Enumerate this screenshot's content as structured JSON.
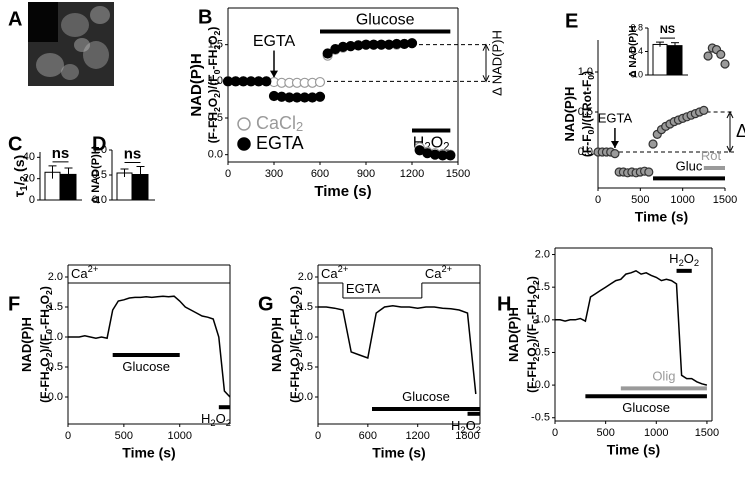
{
  "image": {
    "label": "A"
  },
  "chart_data": [
    {
      "label": "B",
      "type": "scatter",
      "xlabel": "Time (s)",
      "ylabel": [
        "NAD(P)H",
        "(F-FH2O2)/(F0-FH2O2)"
      ],
      "x": [
        0,
        50,
        100,
        150,
        200,
        250,
        300,
        350,
        400,
        450,
        500,
        550,
        600,
        650,
        700,
        750,
        800,
        850,
        900,
        950,
        1000,
        1050,
        1100,
        1150,
        1200,
        1250,
        1300,
        1350,
        1400,
        1450
      ],
      "series": [
        {
          "name": "CaCl2",
          "color": "#9a9a9a",
          "fill": "#ffffff",
          "values": [
            1.0,
            1.0,
            1.0,
            1.0,
            1.0,
            1.0,
            0.99,
            0.98,
            0.98,
            0.98,
            0.98,
            0.98,
            0.99,
            1.35,
            1.43,
            1.46,
            1.48,
            1.49,
            1.5,
            1.5,
            1.5,
            1.5,
            1.5,
            1.51,
            1.52,
            0.1,
            0.04,
            0.02,
            0.01,
            0.0
          ]
        },
        {
          "name": "EGTA",
          "color": "#000000",
          "fill": "#000000",
          "values": [
            1.0,
            1.0,
            1.0,
            1.0,
            1.0,
            1.0,
            0.8,
            0.79,
            0.78,
            0.78,
            0.78,
            0.78,
            0.79,
            1.38,
            1.44,
            1.47,
            1.48,
            1.49,
            1.5,
            1.5,
            1.5,
            1.5,
            1.51,
            1.51,
            1.52,
            0.06,
            0.02,
            0.0,
            -0.01,
            -0.01
          ]
        }
      ],
      "xlim": [
        0,
        1500
      ],
      "xticks": [
        0,
        300,
        600,
        900,
        1200,
        1500
      ],
      "ylim": [
        -0.1,
        2.0
      ],
      "yticks": [
        {
          "value": 0,
          "label": "0.0"
        },
        0.5,
        {
          "value": 1,
          "label": "1.0"
        },
        1.5
      ],
      "legend": "lower left",
      "arrow": {
        "text": "EGTA",
        "x": 300
      },
      "bracket": {
        "text": "Δ NAD(P)H",
        "range": [
          1.0,
          1.5
        ]
      },
      "bars": [
        {
          "label": "Glucose",
          "x": [
            600,
            1450
          ],
          "y": 1.68,
          "color": "#000000"
        },
        {
          "label": "H2O2",
          "x": [
            1200,
            1450
          ],
          "y": 0.33,
          "color": "#000000"
        }
      ]
    },
    {
      "label": "C",
      "type": "bar",
      "ylabel": [
        "τ1/2 (s)"
      ],
      "values": [
        26,
        24
      ],
      "errors": [
        6,
        6
      ],
      "colors": [
        "#ffffff",
        "#000000"
      ],
      "ylim": [
        0,
        45
      ],
      "yticks": [
        0,
        20,
        40
      ],
      "annotation": "ns"
    },
    {
      "label": "D",
      "type": "bar",
      "ylabel": [
        "Δ NAD(P)H"
      ],
      "values": [
        0.54,
        0.51
      ],
      "errors": [
        0.08,
        0.16
      ],
      "colors": [
        "#ffffff",
        "#000000"
      ],
      "ylim": [
        0,
        1.0
      ],
      "yticks": [
        {
          "value": 0,
          "label": "0.0"
        },
        0.5,
        {
          "value": 1,
          "label": "1.0"
        }
      ],
      "annotation": "ns"
    },
    {
      "label": "E",
      "type": "scatter",
      "xlabel": "Time (s)",
      "ylabel": [
        "NAD(P)H",
        "(F-F0)/(FRot-F0)"
      ],
      "x": [
        0,
        50,
        100,
        150,
        200,
        250,
        300,
        350,
        400,
        450,
        500,
        550,
        600,
        650,
        700,
        750,
        800,
        850,
        900,
        950,
        1000,
        1050,
        1100,
        1150,
        1200,
        1250,
        1300,
        1350,
        1400,
        1450,
        1500
      ],
      "values": [
        0,
        0,
        0,
        0,
        -0.02,
        -0.25,
        -0.25,
        -0.26,
        -0.25,
        -0.26,
        -0.25,
        -0.24,
        -0.25,
        0.1,
        0.22,
        0.28,
        0.32,
        0.35,
        0.38,
        0.4,
        0.42,
        0.44,
        0.46,
        0.48,
        0.5,
        0.52,
        1.2,
        1.3,
        1.28,
        1.22,
        1.1
      ],
      "color": "#333333",
      "fill": "#9a9a9a",
      "xlim": [
        0,
        1500
      ],
      "xticks": [
        0,
        500,
        1000,
        1500
      ],
      "ylim": [
        -0.45,
        1.4
      ],
      "yticks": [
        {
          "value": 0,
          "label": "0.0"
        },
        0.5,
        {
          "value": 1,
          "label": "1.0"
        }
      ],
      "arrow": {
        "text": "EGTA",
        "x": 200
      },
      "bracket": {
        "text": "Δ",
        "range": [
          0,
          0.5
        ]
      },
      "bars": [
        {
          "label": "Gluc",
          "x": [
            650,
            1500
          ],
          "y": -0.33,
          "color": "#000000"
        },
        {
          "label": "Rot",
          "x": [
            1250,
            1500
          ],
          "y": -0.2,
          "color": "#9a9a9a"
        }
      ]
    },
    {
      "type": "bar",
      "ylabel": [
        "Δ NAD(P)H"
      ],
      "values": [
        0.52,
        0.5
      ],
      "errors": [
        0.04,
        0.05
      ],
      "colors": [
        "#ffffff",
        "#000000"
      ],
      "ylim": [
        0,
        0.8
      ],
      "yticks": [
        {
          "value": 0,
          "label": "0.0"
        },
        0.4,
        0.8
      ],
      "annotation": "NS"
    },
    {
      "label": "F",
      "type": "line",
      "xlabel": "Time (s)",
      "ylabel": [
        "NAD(P)H",
        "(F-FH2O2)/(F0-FH2O2)"
      ],
      "x": [
        0,
        50,
        100,
        150,
        200,
        250,
        300,
        350,
        400,
        450,
        500,
        550,
        600,
        650,
        700,
        750,
        800,
        850,
        900,
        950,
        1000,
        1050,
        1100,
        1150,
        1200,
        1250,
        1300,
        1350,
        1400,
        1450
      ],
      "values": [
        1.0,
        1.0,
        1.0,
        1.02,
        1.0,
        0.98,
        1.0,
        0.98,
        1.45,
        1.6,
        1.62,
        1.65,
        1.66,
        1.66,
        1.67,
        1.66,
        1.67,
        1.68,
        1.67,
        1.68,
        1.6,
        1.5,
        1.45,
        1.4,
        1.35,
        1.33,
        1.3,
        1.0,
        0.1,
        0.0
      ],
      "color": "#000000",
      "xlim": [
        0,
        1450
      ],
      "xticks": [
        0,
        500,
        1000
      ],
      "ylim": [
        -0.45,
        2.2
      ],
      "yticks": [
        {
          "value": 0,
          "label": "0.0"
        },
        0.5,
        {
          "value": 1,
          "label": "1.0"
        },
        1.5,
        {
          "value": 2,
          "label": "2.0"
        }
      ],
      "steps": [
        {
          "label": "Ca2+",
          "x": [
            0,
            1450
          ],
          "y": 1.9
        }
      ],
      "bars": [
        {
          "label": "Glucose",
          "x": [
            400,
            1000
          ],
          "y": 0.7,
          "color": "#000000"
        },
        {
          "label": "H2O2",
          "x": [
            1350,
            1450
          ],
          "y": -0.17,
          "color": "#000000"
        }
      ]
    },
    {
      "label": "G",
      "type": "line",
      "xlabel": "Time (s)",
      "ylabel": [
        "NAD(P)H",
        "(F-FH2O2)/(F0-FH2O2)"
      ],
      "x": [
        0,
        100,
        200,
        300,
        400,
        500,
        600,
        700,
        800,
        900,
        1000,
        1100,
        1200,
        1300,
        1400,
        1500,
        1600,
        1700,
        1800,
        1900
      ],
      "values": [
        1.5,
        1.5,
        1.48,
        1.45,
        0.75,
        0.7,
        0.65,
        1.4,
        1.5,
        1.52,
        1.5,
        1.5,
        1.48,
        1.5,
        1.5,
        1.48,
        1.47,
        1.45,
        1.4,
        0.05
      ],
      "color": "#000000",
      "xlim": [
        0,
        1950
      ],
      "xticks": [
        0,
        600,
        1200,
        1800
      ],
      "ylim": [
        -0.45,
        2.2
      ],
      "yticks": [
        {
          "value": 0,
          "label": "0.0"
        },
        0.5,
        {
          "value": 1,
          "label": "1.0"
        },
        1.5,
        {
          "value": 2,
          "label": "2.0"
        }
      ],
      "steps": [
        {
          "label": "Ca2+",
          "x": [
            0,
            300
          ],
          "y": 1.9
        },
        {
          "label": "EGTA",
          "x": [
            300,
            1250
          ],
          "y": 1.65
        },
        {
          "label": "Ca2+",
          "x": [
            1250,
            1950
          ],
          "y": 1.9
        }
      ],
      "bars": [
        {
          "label": "Glucose",
          "x": [
            650,
            1950
          ],
          "y": -0.2,
          "color": "#000000"
        },
        {
          "label": "H2O2",
          "x": [
            1800,
            1950
          ],
          "y": -0.28,
          "color": "#000000"
        }
      ]
    },
    {
      "label": "H",
      "type": "line",
      "xlabel": "Time (s)",
      "ylabel": [
        "NAD(P)H",
        "(F-FH2O2)/(F0-FH2O2)"
      ],
      "x": [
        0,
        50,
        100,
        150,
        200,
        250,
        300,
        350,
        400,
        450,
        500,
        550,
        600,
        650,
        700,
        750,
        800,
        850,
        900,
        950,
        1000,
        1050,
        1100,
        1150,
        1200,
        1250,
        1300,
        1350,
        1400,
        1450,
        1500
      ],
      "values": [
        1.0,
        1.0,
        0.98,
        1.0,
        1.0,
        1.02,
        0.98,
        1.35,
        1.4,
        1.45,
        1.5,
        1.55,
        1.6,
        1.62,
        1.7,
        1.72,
        1.75,
        1.7,
        1.72,
        1.68,
        1.65,
        1.6,
        1.62,
        1.6,
        1.55,
        0.15,
        0.1,
        0.1,
        0.05,
        0.02,
        0.0
      ],
      "color": "#000000",
      "xlim": [
        0,
        1550
      ],
      "xticks": [
        0,
        500,
        1000,
        1500
      ],
      "ylim": [
        -0.55,
        2.1
      ],
      "yticks": [
        -0.5,
        {
          "value": 0,
          "label": "0.0"
        },
        0.5,
        {
          "value": 1,
          "label": "1.0"
        },
        1.5,
        {
          "value": 2,
          "label": "2.0"
        }
      ],
      "bars": [
        {
          "label": "Glucose",
          "x": [
            300,
            1500
          ],
          "y": -0.17,
          "color": "#000000"
        },
        {
          "label": "Olig",
          "x": [
            650,
            1500
          ],
          "y": -0.05,
          "color": "#9a9a9a"
        },
        {
          "label": "H2O2",
          "x": [
            1200,
            1350
          ],
          "y": 1.75,
          "color": "#000000"
        }
      ]
    }
  ]
}
